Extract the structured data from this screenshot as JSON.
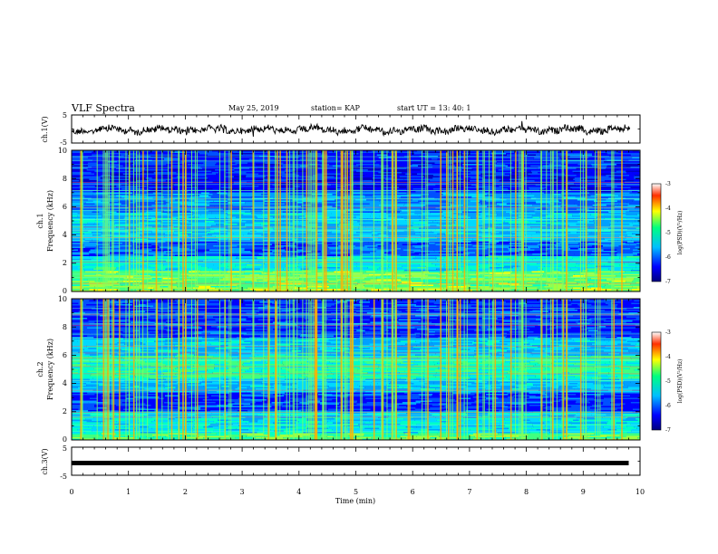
{
  "header": {
    "title": "VLF Spectra",
    "date": "May 25, 2019",
    "station": "station= KAP",
    "start_time": "start  UT  =   13: 40: 1"
  },
  "chart_data": [
    {
      "type": "line",
      "ylabel": "ch.1(V)",
      "ylim": [
        -5,
        5
      ],
      "yticks": [
        "5",
        "-5"
      ],
      "xlim": [
        0,
        10
      ],
      "line_color": "#000000",
      "description_level": 0.5
    },
    {
      "type": "heatmap",
      "ylabel": "ch.1",
      "ylabel2": "Frequency (kHz)",
      "xlim": [
        0,
        10
      ],
      "ylim": [
        0,
        10
      ],
      "yticks": [
        "0",
        "2",
        "4",
        "6",
        "8",
        "10"
      ],
      "colorbar": {
        "label": "log(PSD)(V²/Hz)",
        "ticks": [
          "-3",
          "-4",
          "-5",
          "-6",
          "-7"
        ],
        "range": [
          -7,
          -3
        ],
        "colormap": [
          "#00007f",
          "#0000ff",
          "#00bfff",
          "#00ff80",
          "#ffff00",
          "#ff4000",
          "#ffffff"
        ]
      }
    },
    {
      "type": "heatmap",
      "ylabel": "ch.2",
      "ylabel2": "Frequency (kHz)",
      "xlim": [
        0,
        10
      ],
      "ylim": [
        0,
        10
      ],
      "yticks": [
        "0",
        "2",
        "4",
        "6",
        "8",
        "10"
      ],
      "colorbar": {
        "label": "log(PSD)(V²/Hz)",
        "ticks": [
          "-3",
          "-4",
          "-5",
          "-6",
          "-7"
        ],
        "range": [
          -7,
          -3
        ],
        "colormap": [
          "#00007f",
          "#0000ff",
          "#00bfff",
          "#00ff80",
          "#ffff00",
          "#ff4000",
          "#ffffff"
        ]
      }
    },
    {
      "type": "line",
      "ylabel": "ch.3(V)",
      "ylim": [
        -5,
        5
      ],
      "yticks": [
        "5",
        "-5"
      ],
      "xlim": [
        0,
        10
      ],
      "xlabel": "Time  (min)",
      "xticks": [
        "0",
        "1",
        "2",
        "3",
        "4",
        "5",
        "6",
        "7",
        "8",
        "9",
        "10"
      ],
      "constant_value": -1.5,
      "data_end_x": 9.8
    }
  ]
}
